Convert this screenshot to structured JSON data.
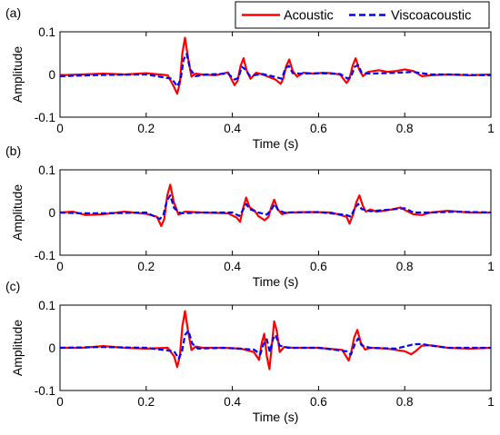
{
  "legend": {
    "placement": "top-right",
    "entries": [
      {
        "name": "Acoustic",
        "color": "#ff0000",
        "style": "solid"
      },
      {
        "name": "Viscoacoustic",
        "color": "#0000ff",
        "style": "dashed"
      }
    ]
  },
  "chart_data": [
    {
      "type": "line",
      "panel_label": "(a)",
      "xlabel": "Time (s)",
      "ylabel": "Amplitude",
      "xlim": [
        0,
        1
      ],
      "ylim": [
        -0.1,
        0.1
      ],
      "xticks": [
        0,
        0.2,
        0.4,
        0.6,
        0.8,
        1
      ],
      "xtick_labels": [
        "0",
        "0.2",
        "0.4",
        "0.6",
        "0.8",
        "1"
      ],
      "yticks": [
        0.1,
        0,
        -0.1
      ],
      "ytick_labels": [
        "0.1",
        "0",
        "-0.1"
      ],
      "grid": false,
      "series": [
        {
          "name": "Acoustic",
          "color": "#ff0000",
          "x": [
            0.0,
            0.05,
            0.1,
            0.15,
            0.2,
            0.25,
            0.265,
            0.272,
            0.278,
            0.284,
            0.29,
            0.297,
            0.305,
            0.315,
            0.33,
            0.36,
            0.39,
            0.405,
            0.412,
            0.419,
            0.426,
            0.433,
            0.442,
            0.455,
            0.47,
            0.5,
            0.512,
            0.518,
            0.525,
            0.532,
            0.54,
            0.55,
            0.565,
            0.59,
            0.61,
            0.63,
            0.65,
            0.665,
            0.672,
            0.679,
            0.686,
            0.694,
            0.703,
            0.715,
            0.74,
            0.76,
            0.78,
            0.8,
            0.82,
            0.84,
            0.86,
            0.9,
            0.95,
            1.0
          ],
          "y": [
            -0.002,
            0.0,
            0.002,
            0.0,
            0.003,
            -0.002,
            -0.03,
            -0.045,
            -0.02,
            0.05,
            0.086,
            0.04,
            -0.005,
            0.002,
            0.0,
            -0.002,
            0.005,
            -0.025,
            -0.015,
            0.02,
            0.038,
            0.01,
            -0.01,
            0.004,
            0.0,
            -0.012,
            -0.022,
            -0.01,
            0.02,
            0.035,
            0.008,
            -0.005,
            0.004,
            0.002,
            0.004,
            0.003,
            0.0,
            -0.02,
            -0.01,
            0.02,
            0.038,
            0.012,
            -0.004,
            0.006,
            0.01,
            0.006,
            0.008,
            0.012,
            0.008,
            -0.004,
            -0.002,
            0.0,
            -0.002,
            0.0
          ]
        },
        {
          "name": "Viscoacoustic",
          "color": "#0000ff",
          "x": [
            0.0,
            0.1,
            0.2,
            0.26,
            0.272,
            0.28,
            0.287,
            0.294,
            0.302,
            0.315,
            0.34,
            0.39,
            0.405,
            0.414,
            0.422,
            0.43,
            0.44,
            0.47,
            0.5,
            0.515,
            0.523,
            0.531,
            0.54,
            0.56,
            0.6,
            0.65,
            0.668,
            0.676,
            0.684,
            0.692,
            0.7,
            0.72,
            0.78,
            0.82,
            0.86,
            0.9,
            1.0
          ],
          "y": [
            -0.004,
            -0.001,
            0.0,
            -0.01,
            -0.028,
            -0.012,
            0.035,
            0.048,
            0.012,
            -0.004,
            0.0,
            0.002,
            -0.012,
            -0.008,
            0.018,
            0.012,
            -0.003,
            0.001,
            -0.006,
            -0.01,
            0.015,
            0.02,
            0.003,
            0.002,
            0.003,
            0.001,
            -0.01,
            -0.004,
            0.018,
            0.022,
            0.004,
            0.002,
            0.004,
            0.006,
            0.0,
            0.0,
            -0.002
          ]
        }
      ]
    },
    {
      "type": "line",
      "panel_label": "(b)",
      "xlabel": "Time (s)",
      "ylabel": "Amplitude",
      "xlim": [
        0,
        1
      ],
      "ylim": [
        -0.1,
        0.1
      ],
      "xticks": [
        0,
        0.2,
        0.4,
        0.6,
        0.8,
        1
      ],
      "xtick_labels": [
        "0",
        "0.2",
        "0.4",
        "0.6",
        "0.8",
        "1"
      ],
      "yticks": [
        0.1,
        0,
        -0.1
      ],
      "ytick_labels": [
        "0.1",
        "0",
        "-0.1"
      ],
      "grid": false,
      "series": [
        {
          "name": "Acoustic",
          "color": "#ff0000",
          "x": [
            0.0,
            0.03,
            0.06,
            0.1,
            0.15,
            0.2,
            0.225,
            0.235,
            0.242,
            0.249,
            0.256,
            0.264,
            0.275,
            0.29,
            0.33,
            0.39,
            0.41,
            0.418,
            0.425,
            0.432,
            0.44,
            0.452,
            0.46,
            0.475,
            0.484,
            0.49,
            0.497,
            0.505,
            0.515,
            0.53,
            0.58,
            0.63,
            0.665,
            0.672,
            0.68,
            0.688,
            0.695,
            0.703,
            0.71,
            0.72,
            0.735,
            0.75,
            0.77,
            0.79,
            0.8,
            0.82,
            0.84,
            0.86,
            0.9,
            0.95,
            1.0
          ],
          "y": [
            0.0,
            0.002,
            -0.006,
            -0.004,
            0.002,
            -0.003,
            -0.01,
            -0.032,
            -0.015,
            0.04,
            0.065,
            0.025,
            -0.005,
            0.002,
            0.0,
            -0.002,
            -0.012,
            -0.022,
            0.01,
            0.035,
            0.012,
            0.004,
            -0.008,
            -0.018,
            -0.01,
            0.012,
            0.03,
            0.008,
            -0.004,
            0.0,
            0.001,
            0.0,
            -0.01,
            -0.026,
            -0.005,
            0.025,
            0.04,
            0.015,
            0.002,
            0.007,
            0.002,
            0.004,
            0.007,
            0.012,
            0.006,
            -0.004,
            -0.006,
            0.0,
            0.004,
            0.0,
            0.0
          ]
        },
        {
          "name": "Viscoacoustic",
          "color": "#0000ff",
          "x": [
            0.0,
            0.05,
            0.1,
            0.2,
            0.232,
            0.24,
            0.248,
            0.256,
            0.265,
            0.28,
            0.33,
            0.4,
            0.416,
            0.424,
            0.432,
            0.44,
            0.46,
            0.48,
            0.49,
            0.498,
            0.506,
            0.52,
            0.6,
            0.665,
            0.675,
            0.684,
            0.692,
            0.7,
            0.72,
            0.78,
            0.8,
            0.82,
            0.86,
            0.92,
            1.0
          ],
          "y": [
            0.0,
            -0.002,
            -0.002,
            0.0,
            -0.015,
            -0.005,
            0.028,
            0.04,
            0.01,
            -0.002,
            0.0,
            0.0,
            -0.008,
            0.005,
            0.02,
            0.008,
            0.0,
            -0.005,
            0.006,
            0.02,
            0.006,
            0.0,
            0.001,
            -0.006,
            -0.01,
            0.01,
            0.02,
            0.008,
            0.003,
            0.008,
            0.01,
            0.0,
            0.0,
            0.002,
            0.0
          ]
        }
      ]
    },
    {
      "type": "line",
      "panel_label": "(c)",
      "xlabel": "Time (s)",
      "ylabel": "Amplitude",
      "xlim": [
        0,
        1
      ],
      "ylim": [
        -0.1,
        0.1
      ],
      "xticks": [
        0,
        0.2,
        0.4,
        0.6,
        0.8,
        1
      ],
      "xtick_labels": [
        "0",
        "0.2",
        "0.4",
        "0.6",
        "0.8",
        "1"
      ],
      "yticks": [
        0.1,
        0,
        -0.1
      ],
      "ytick_labels": [
        "0.1",
        "0",
        "-0.1"
      ],
      "grid": false,
      "series": [
        {
          "name": "Acoustic",
          "color": "#ff0000",
          "x": [
            0.0,
            0.05,
            0.1,
            0.15,
            0.2,
            0.25,
            0.265,
            0.272,
            0.278,
            0.284,
            0.29,
            0.297,
            0.305,
            0.315,
            0.33,
            0.38,
            0.42,
            0.45,
            0.462,
            0.468,
            0.474,
            0.48,
            0.486,
            0.492,
            0.497,
            0.503,
            0.51,
            0.52,
            0.54,
            0.6,
            0.655,
            0.67,
            0.676,
            0.683,
            0.69,
            0.698,
            0.708,
            0.72,
            0.76,
            0.8,
            0.815,
            0.825,
            0.84,
            0.86,
            0.9,
            0.95,
            1.0
          ],
          "y": [
            0.0,
            0.0,
            0.004,
            0.0,
            -0.002,
            0.0,
            -0.02,
            -0.045,
            -0.02,
            0.05,
            0.086,
            0.04,
            -0.005,
            0.003,
            0.0,
            0.0,
            -0.002,
            -0.01,
            -0.028,
            0.01,
            0.033,
            -0.02,
            -0.05,
            0.01,
            0.062,
            0.04,
            -0.01,
            0.002,
            0.0,
            0.0,
            -0.005,
            -0.03,
            -0.01,
            0.025,
            0.042,
            0.012,
            -0.004,
            0.0,
            -0.002,
            -0.008,
            -0.015,
            -0.008,
            0.005,
            0.006,
            0.0,
            -0.002,
            0.0
          ]
        },
        {
          "name": "Viscoacoustic",
          "color": "#0000ff",
          "x": [
            0.0,
            0.1,
            0.2,
            0.265,
            0.275,
            0.283,
            0.29,
            0.298,
            0.307,
            0.32,
            0.38,
            0.45,
            0.465,
            0.472,
            0.48,
            0.487,
            0.494,
            0.5,
            0.51,
            0.53,
            0.6,
            0.665,
            0.675,
            0.684,
            0.692,
            0.7,
            0.72,
            0.78,
            0.82,
            0.84,
            0.86,
            0.9,
            1.0
          ],
          "y": [
            0.0,
            0.002,
            0.0,
            -0.008,
            -0.025,
            -0.01,
            0.03,
            0.04,
            0.01,
            -0.002,
            0.0,
            -0.004,
            -0.015,
            0.008,
            0.02,
            -0.01,
            0.02,
            0.03,
            0.005,
            0.0,
            0.0,
            -0.008,
            -0.016,
            0.008,
            0.022,
            0.006,
            0.0,
            -0.002,
            0.008,
            0.009,
            0.005,
            0.0,
            0.0
          ]
        }
      ]
    }
  ]
}
